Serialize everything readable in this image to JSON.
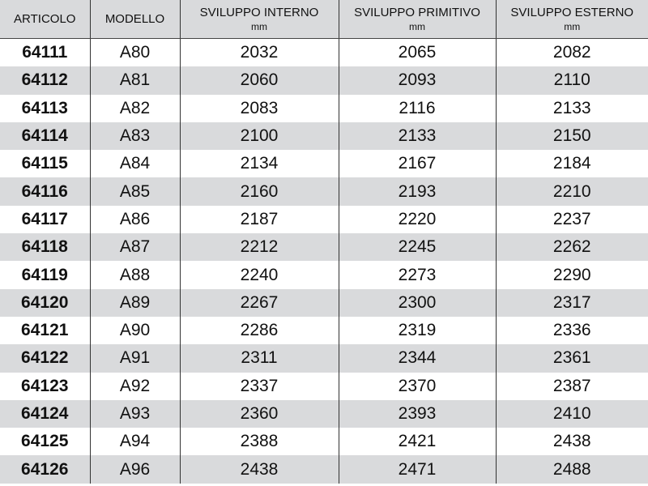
{
  "headers": [
    {
      "label": "ARTICOLO",
      "unit": ""
    },
    {
      "label": "MODELLO",
      "unit": ""
    },
    {
      "label": "SVILUPPO INTERNO",
      "unit": "mm"
    },
    {
      "label": "SVILUPPO PRIMITIVO",
      "unit": "mm"
    },
    {
      "label": "SVILUPPO ESTERNO",
      "unit": "mm"
    }
  ],
  "rows": [
    [
      "64111",
      "A80",
      "2032",
      "2065",
      "2082"
    ],
    [
      "64112",
      "A81",
      "2060",
      "2093",
      "2110"
    ],
    [
      "64113",
      "A82",
      "2083",
      "2116",
      "2133"
    ],
    [
      "64114",
      "A83",
      "2100",
      "2133",
      "2150"
    ],
    [
      "64115",
      "A84",
      "2134",
      "2167",
      "2184"
    ],
    [
      "64116",
      "A85",
      "2160",
      "2193",
      "2210"
    ],
    [
      "64117",
      "A86",
      "2187",
      "2220",
      "2237"
    ],
    [
      "64118",
      "A87",
      "2212",
      "2245",
      "2262"
    ],
    [
      "64119",
      "A88",
      "2240",
      "2273",
      "2290"
    ],
    [
      "64120",
      "A89",
      "2267",
      "2300",
      "2317"
    ],
    [
      "64121",
      "A90",
      "2286",
      "2319",
      "2336"
    ],
    [
      "64122",
      "A91",
      "2311",
      "2344",
      "2361"
    ],
    [
      "64123",
      "A92",
      "2337",
      "2370",
      "2387"
    ],
    [
      "64124",
      "A93",
      "2360",
      "2393",
      "2410"
    ],
    [
      "64125",
      "A94",
      "2388",
      "2421",
      "2438"
    ],
    [
      "64126",
      "A96",
      "2438",
      "2471",
      "2488"
    ]
  ],
  "colors": {
    "stripe": "#d9dadc",
    "header": "#d9dadc"
  }
}
